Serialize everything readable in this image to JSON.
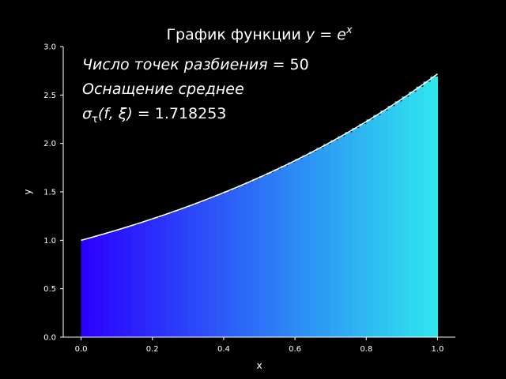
{
  "chart_data": {
    "type": "bar",
    "title": "График функции y = e^x",
    "title_prefix": "График функции ",
    "title_formula_base": "y = e",
    "title_formula_exp": "x",
    "xlabel": "x",
    "ylabel": "y",
    "xlim": [
      -0.05,
      1.05
    ],
    "ylim": [
      0.0,
      3.0
    ],
    "x_ticks": [
      "0.0",
      "0.2",
      "0.4",
      "0.6",
      "0.8",
      "1.0"
    ],
    "y_ticks": [
      "0.0",
      "0.5",
      "1.0",
      "1.5",
      "2.0",
      "2.5",
      "3.0"
    ],
    "x_tick_values": [
      0.0,
      0.2,
      0.4,
      0.6,
      0.8,
      1.0
    ],
    "y_tick_values": [
      0.0,
      0.5,
      1.0,
      1.5,
      2.0,
      2.5,
      3.0
    ],
    "partition": {
      "a": 0.0,
      "b": 1.0,
      "n": 50,
      "tag": "midpoint"
    },
    "function": "exp(x)",
    "annotations": {
      "line1_label": "Число точек разбиения",
      "line1_eq": " =  ",
      "line1_value": "50",
      "line2": "Оснащение среднее",
      "line3_lhs": "σ",
      "line3_sub": "τ",
      "line3_args": "(f, ξ) = ",
      "line3_value": "1.718253"
    },
    "colors": {
      "background": "#000000",
      "axis": "#ffffff",
      "curve": "#ffffff",
      "gradient_start": "#2a00ff",
      "gradient_end": "#2fe5ee"
    },
    "grid": false
  }
}
